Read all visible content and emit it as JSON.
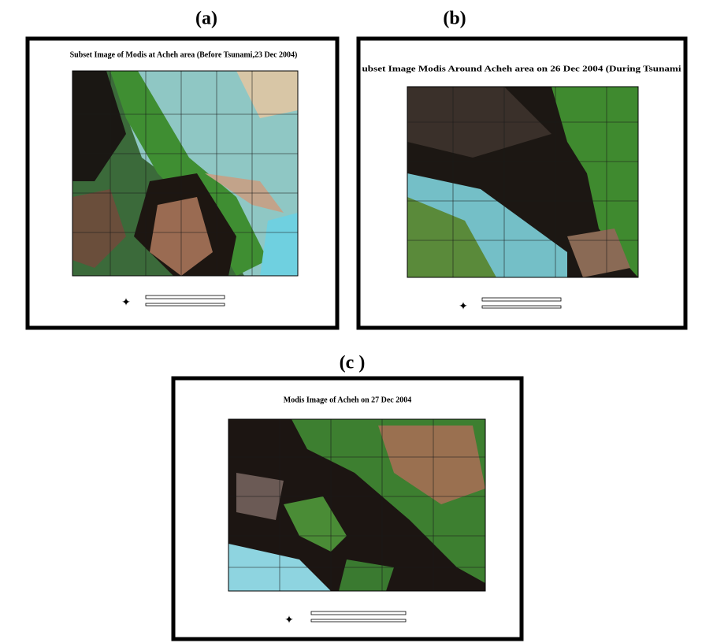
{
  "panels": [
    {
      "label": "(a)",
      "title": "Subset Image of Modis at Acheh area (Before Tsunami,23 Dec 2004)"
    },
    {
      "label": "(b)",
      "title": "ubset Image Modis Around Acheh area on 26 Dec 2004 (During Tsunami"
    },
    {
      "label": "(c )",
      "title": "Modis Image of Acheh on 27 Dec 2004"
    }
  ]
}
